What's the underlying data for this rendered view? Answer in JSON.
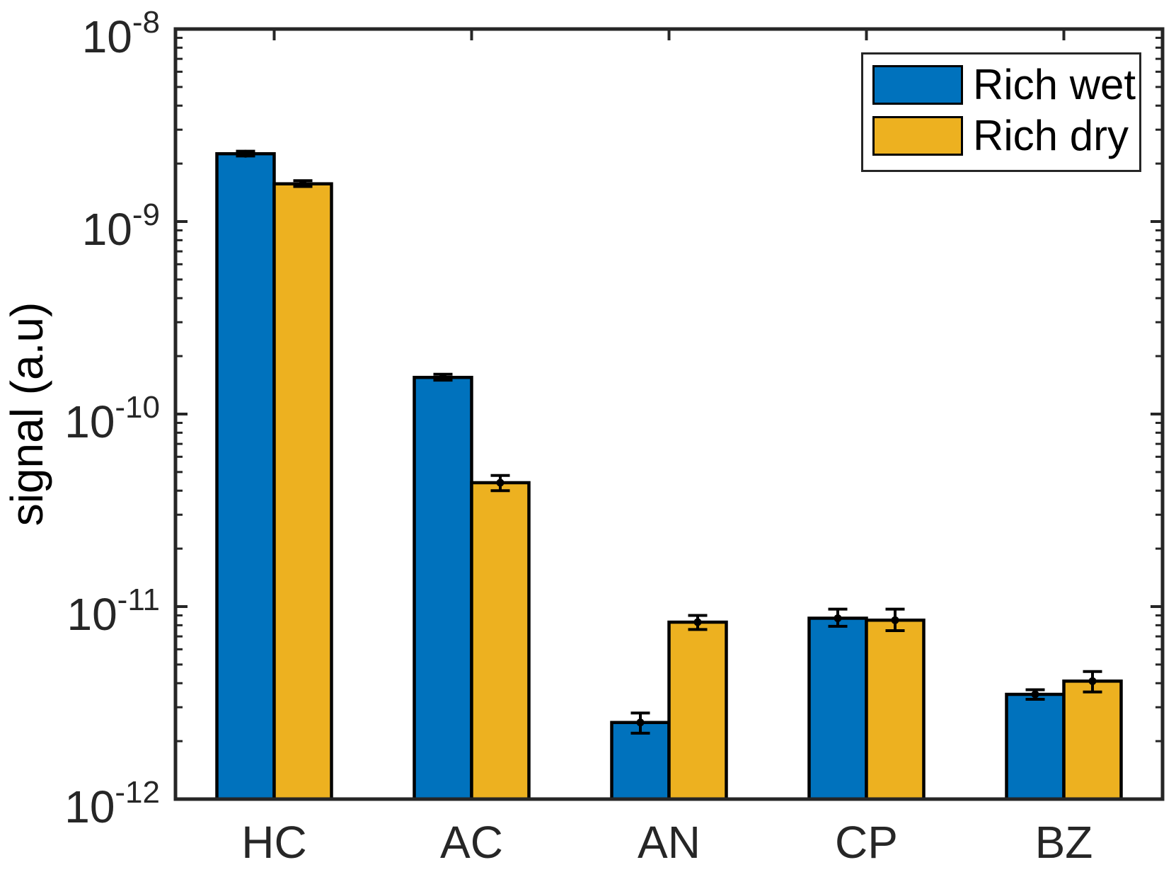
{
  "chart_data": {
    "type": "bar",
    "yscale": "log",
    "title": "",
    "xlabel": "",
    "ylabel": "signal (a.u)",
    "ylim": [
      1e-12,
      1e-08
    ],
    "ytick_base": "10",
    "ytick_exponents": [
      -8,
      -9,
      -10,
      -11,
      -12
    ],
    "minor_ticks": true,
    "grid": false,
    "categories": [
      "HC",
      "AC",
      "AN",
      "CP",
      "BZ"
    ],
    "series": [
      {
        "name": "Rich wet",
        "color": "#0072BD",
        "values": [
          2.25e-09,
          1.55e-10,
          2.5e-12,
          8.7e-12,
          3.5e-12
        ],
        "err_lo": [
          2.19e-09,
          1.5e-10,
          2.2e-12,
          7.9e-12,
          3.3e-12
        ],
        "err_hi": [
          2.32e-09,
          1.61e-10,
          2.8e-12,
          9.7e-12,
          3.7e-12
        ]
      },
      {
        "name": "Rich dry",
        "color": "#EDB120",
        "values": [
          1.57e-09,
          4.4e-11,
          8.3e-12,
          8.5e-12,
          4.1e-12
        ],
        "err_lo": [
          1.52e-09,
          4e-11,
          7.6e-12,
          7.5e-12,
          3.6e-12
        ],
        "err_hi": [
          1.63e-09,
          4.8e-11,
          9e-12,
          9.7e-12,
          4.6e-12
        ]
      }
    ],
    "legend": {
      "position": "northeast",
      "labels": [
        "Rich wet",
        "Rich dry"
      ]
    },
    "error_bar_marker": "dot",
    "axis_color": "#262626",
    "bar_edge_color": "#000000",
    "error_bar_color": "#000000",
    "background": "#ffffff"
  }
}
